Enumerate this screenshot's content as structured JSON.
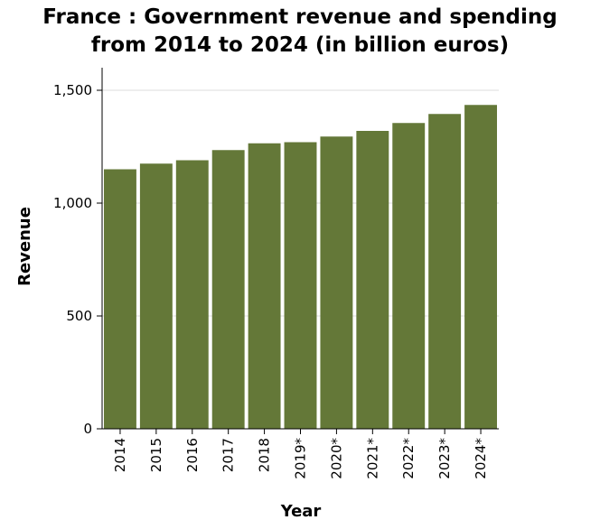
{
  "chart_data": {
    "type": "bar",
    "title_line1": "France : Government revenue and spending",
    "title_line2": "from 2014 to 2024 (in billion euros)",
    "xlabel": "Year",
    "ylabel": "Revenue",
    "categories": [
      "2014",
      "2015",
      "2016",
      "2017",
      "2018",
      "2019*",
      "2020*",
      "2021*",
      "2022*",
      "2023*",
      "2024*"
    ],
    "values": [
      1150,
      1175,
      1190,
      1235,
      1265,
      1270,
      1295,
      1320,
      1355,
      1395,
      1435
    ],
    "ylim": [
      0,
      1500
    ],
    "yticks": [
      0,
      500,
      1000,
      1500
    ],
    "ytick_labels": [
      "0",
      "500",
      "1,000",
      "1,500"
    ],
    "grid": true,
    "bar_color": "#647838",
    "grid_color": "#dddddd"
  }
}
